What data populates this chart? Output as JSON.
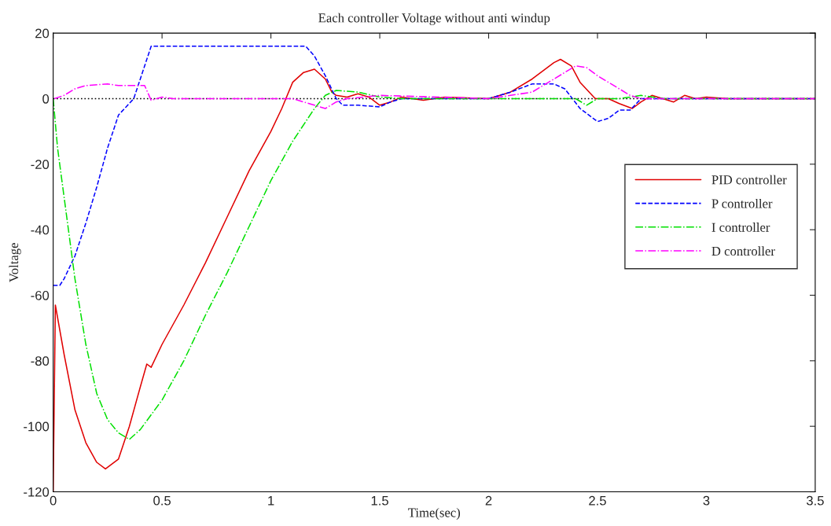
{
  "chart_data": {
    "type": "line",
    "title": "Each controller Voltage without anti windup",
    "xlabel": "Time(sec)",
    "ylabel": "Voltage",
    "xlim": [
      0,
      3.5
    ],
    "ylim": [
      -120,
      20
    ],
    "xticks": [
      0,
      0.5,
      1,
      1.5,
      2,
      2.5,
      3,
      3.5
    ],
    "yticks": [
      -120,
      -100,
      -80,
      -60,
      -40,
      -20,
      0,
      20
    ],
    "grid": false,
    "legend": "right",
    "marker": "none",
    "ref_lines": [
      {
        "axis": "y",
        "value": 0,
        "color": "#000000",
        "line_style": "dotted"
      }
    ],
    "series": [
      {
        "name": "PID controller",
        "color": "#e00000",
        "line_style": "solid",
        "x": [
          0,
          0.01,
          0.05,
          0.1,
          0.15,
          0.2,
          0.24,
          0.3,
          0.35,
          0.4,
          0.43,
          0.45,
          0.5,
          0.6,
          0.7,
          0.8,
          0.9,
          1.0,
          1.05,
          1.1,
          1.15,
          1.2,
          1.25,
          1.28,
          1.3,
          1.35,
          1.4,
          1.45,
          1.5,
          1.55,
          1.6,
          1.7,
          1.8,
          2.0,
          2.1,
          2.2,
          2.3,
          2.33,
          2.38,
          2.42,
          2.49,
          2.55,
          2.6,
          2.66,
          2.7,
          2.75,
          2.8,
          2.85,
          2.9,
          2.95,
          3.0,
          3.1,
          3.2,
          3.5
        ],
        "values": [
          -120,
          -63,
          -78,
          -95,
          -105,
          -111,
          -113,
          -110,
          -100,
          -88,
          -81,
          -82,
          -75,
          -63,
          -50,
          -36,
          -22,
          -10,
          -3,
          5,
          8,
          9,
          6,
          2,
          1,
          0.5,
          1.5,
          0.5,
          -2,
          -1,
          0.5,
          -0.5,
          0.5,
          0,
          2,
          6,
          11,
          12,
          10,
          5,
          0,
          0,
          -1.5,
          -3,
          -1,
          1,
          0,
          -1,
          1,
          0,
          0.5,
          0,
          0,
          0
        ]
      },
      {
        "name": "P controller",
        "color": "#0000ff",
        "line_style": "dashed",
        "x": [
          0,
          0.03,
          0.05,
          0.1,
          0.15,
          0.2,
          0.25,
          0.3,
          0.37,
          0.45,
          0.5,
          1.16,
          1.2,
          1.25,
          1.3,
          1.33,
          1.4,
          1.5,
          1.55,
          1.6,
          2.0,
          2.1,
          2.2,
          2.3,
          2.35,
          2.42,
          2.5,
          2.55,
          2.6,
          2.65,
          2.7,
          2.8,
          3.5
        ],
        "values": [
          -57,
          -57,
          -55,
          -48,
          -38,
          -27,
          -15,
          -5,
          0,
          16,
          16,
          16,
          13,
          7,
          0,
          -2,
          -2,
          -2.5,
          -1,
          0,
          0,
          2,
          4.5,
          4.5,
          3,
          -3,
          -7,
          -6,
          -3.5,
          -3.5,
          0,
          0,
          0
        ]
      },
      {
        "name": "I controller",
        "color": "#00e000",
        "line_style": "dashdot",
        "x": [
          0,
          0.02,
          0.05,
          0.1,
          0.15,
          0.2,
          0.25,
          0.3,
          0.35,
          0.4,
          0.5,
          0.6,
          0.7,
          0.8,
          0.9,
          1.0,
          1.1,
          1.2,
          1.25,
          1.3,
          1.4,
          1.5,
          1.6,
          2.0,
          2.4,
          2.45,
          2.5,
          2.6,
          2.7,
          2.8,
          3.5
        ],
        "values": [
          0,
          -15,
          -30,
          -55,
          -75,
          -90,
          -98,
          -102,
          -104,
          -101,
          -92,
          -80,
          -66,
          -53,
          -39,
          -25,
          -13,
          -3,
          1,
          2.5,
          2,
          0.5,
          0,
          0,
          0,
          -2,
          0,
          0,
          1,
          0,
          0
        ]
      },
      {
        "name": "D controller",
        "color": "#ff00ff",
        "line_style": "dashdot",
        "x": [
          0.005,
          0.05,
          0.1,
          0.15,
          0.25,
          0.3,
          0.42,
          0.45,
          0.5,
          0.55,
          1.1,
          1.2,
          1.25,
          1.3,
          1.35,
          1.5,
          2.0,
          2.2,
          2.3,
          2.4,
          2.45,
          2.5,
          2.6,
          2.65,
          2.7,
          3.5
        ],
        "values": [
          0,
          1,
          3,
          4,
          4.5,
          4,
          4,
          -0.5,
          0.5,
          0,
          0,
          -2,
          -3,
          -1,
          0,
          1,
          0,
          2,
          6,
          10,
          9.5,
          7,
          3,
          1,
          0,
          0
        ]
      }
    ]
  }
}
